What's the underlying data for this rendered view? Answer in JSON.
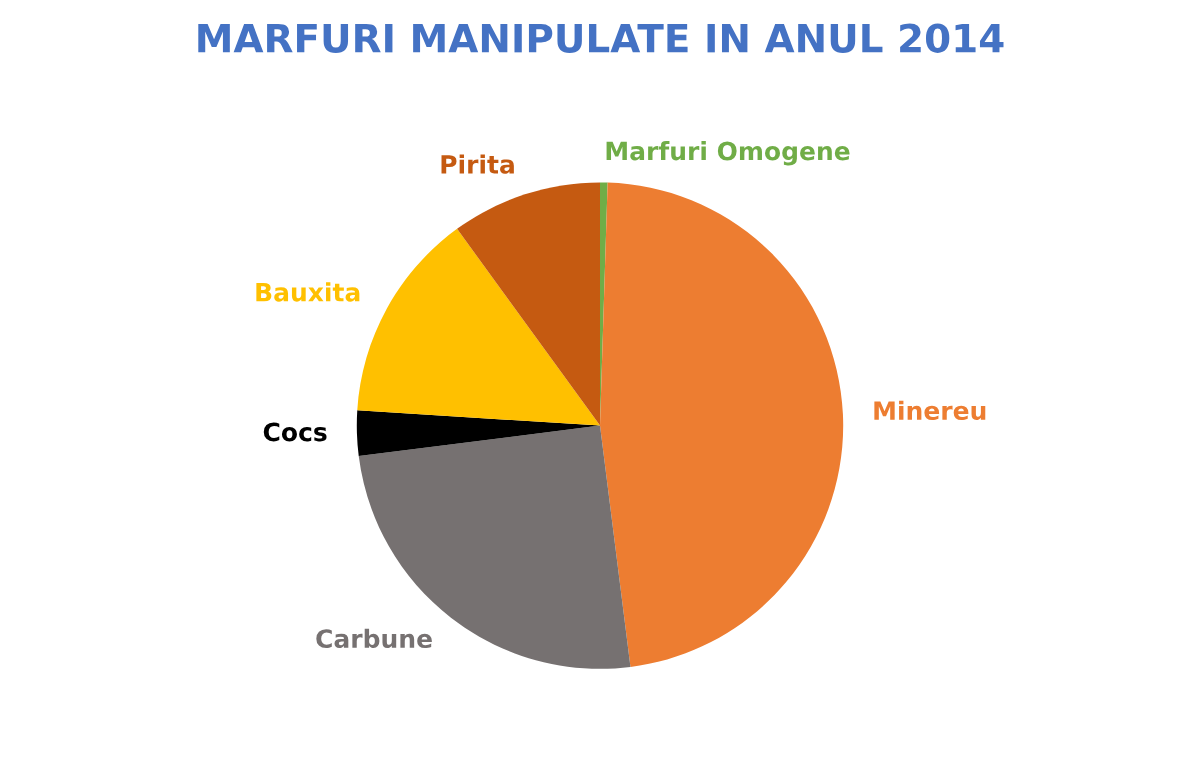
{
  "chart_data": {
    "type": "pie",
    "title": "MARFURI MANIPULATE IN ANUL 2014",
    "categories": [
      "Marfuri Omogene",
      "Minereu",
      "Carbune",
      "Cocs",
      "Bauxita",
      "Pirita"
    ],
    "values": [
      0.5,
      47.5,
      25,
      3,
      14,
      10
    ],
    "colors": [
      "#70ad47",
      "#ed7d31",
      "#767171",
      "#000000",
      "#ffc000",
      "#c55a11"
    ],
    "legend": false
  }
}
